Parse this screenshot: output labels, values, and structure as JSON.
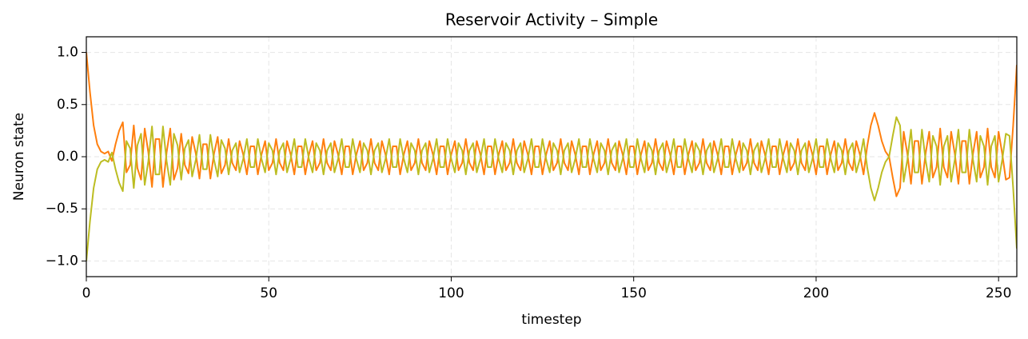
{
  "chart_data": {
    "type": "line",
    "title": "Reservoir Activity – Simple",
    "xlabel": "timestep",
    "ylabel": "Neuron state",
    "xlim": [
      0,
      255
    ],
    "ylim": [
      -1.15,
      1.15
    ],
    "xticks": [
      0,
      50,
      100,
      150,
      200,
      250
    ],
    "yticks": [
      {
        "value": -1.0,
        "label": "−1.0"
      },
      {
        "value": -0.5,
        "label": "−0.5"
      },
      {
        "value": 0.0,
        "label": "0.0"
      },
      {
        "value": 0.5,
        "label": "0.5"
      },
      {
        "value": 1.0,
        "label": "1.0"
      }
    ],
    "grid": true,
    "x": [
      0,
      1,
      2,
      3,
      4,
      5,
      6,
      7,
      8,
      9,
      10,
      11,
      12,
      13,
      14,
      15,
      16,
      17,
      18,
      19,
      20,
      21,
      22,
      23,
      24,
      25,
      26,
      27,
      28,
      29,
      30,
      31,
      32,
      33,
      34,
      35,
      36,
      37,
      38,
      39,
      40,
      41,
      42,
      43,
      44,
      45,
      46,
      47,
      48,
      49,
      50,
      51,
      52,
      53,
      54,
      55,
      56,
      57,
      58,
      59,
      60,
      61,
      62,
      63,
      64,
      65,
      66,
      67,
      68,
      69,
      70,
      71,
      72,
      73,
      74,
      75,
      76,
      77,
      78,
      79,
      80,
      81,
      82,
      83,
      84,
      85,
      86,
      87,
      88,
      89,
      90,
      91,
      92,
      93,
      94,
      95,
      96,
      97,
      98,
      99,
      100,
      101,
      102,
      103,
      104,
      105,
      106,
      107,
      108,
      109,
      110,
      111,
      112,
      113,
      114,
      115,
      116,
      117,
      118,
      119,
      120,
      121,
      122,
      123,
      124,
      125,
      126,
      127,
      128,
      129,
      130,
      131,
      132,
      133,
      134,
      135,
      136,
      137,
      138,
      139,
      140,
      141,
      142,
      143,
      144,
      145,
      146,
      147,
      148,
      149,
      150,
      151,
      152,
      153,
      154,
      155,
      156,
      157,
      158,
      159,
      160,
      161,
      162,
      163,
      164,
      165,
      166,
      167,
      168,
      169,
      170,
      171,
      172,
      173,
      174,
      175,
      176,
      177,
      178,
      179,
      180,
      181,
      182,
      183,
      184,
      185,
      186,
      187,
      188,
      189,
      190,
      191,
      192,
      193,
      194,
      195,
      196,
      197,
      198,
      199,
      200,
      201,
      202,
      203,
      204,
      205,
      206,
      207,
      208,
      209,
      210,
      211,
      212,
      213,
      214,
      215,
      216,
      217,
      218,
      219,
      220,
      221,
      222,
      223,
      224,
      225,
      226,
      227,
      228,
      229,
      230,
      231,
      232,
      233,
      234,
      235,
      236,
      237,
      238,
      239,
      240,
      241,
      242,
      243,
      244,
      245,
      246,
      247,
      248,
      249,
      250,
      251,
      252,
      253,
      254,
      255
    ],
    "series": [
      {
        "color": "#ff7f0e",
        "values": [
          1.0,
          0.62,
          0.3,
          0.12,
          0.05,
          0.03,
          0.05,
          -0.04,
          0.12,
          0.25,
          0.33,
          -0.15,
          -0.08,
          0.3,
          -0.11,
          -0.22,
          0.27,
          0.04,
          -0.29,
          0.17,
          0.17,
          -0.29,
          0.04,
          0.27,
          -0.22,
          -0.11,
          0.22,
          -0.08,
          -0.16,
          0.19,
          0.03,
          -0.21,
          0.12,
          0.12,
          -0.21,
          0.03,
          0.19,
          -0.16,
          -0.08,
          0.17,
          -0.06,
          -0.13,
          0.15,
          0.02,
          -0.17,
          0.1,
          0.1,
          -0.17,
          0.02,
          0.15,
          -0.13,
          -0.06,
          0.17,
          -0.06,
          -0.13,
          0.15,
          0.02,
          -0.17,
          0.1,
          0.1,
          -0.17,
          0.02,
          0.15,
          -0.13,
          -0.06,
          0.17,
          -0.06,
          -0.13,
          0.15,
          0.02,
          -0.17,
          0.1,
          0.1,
          -0.17,
          0.02,
          0.15,
          -0.13,
          -0.06,
          0.17,
          -0.06,
          -0.13,
          0.15,
          0.02,
          -0.17,
          0.1,
          0.1,
          -0.17,
          0.02,
          0.15,
          -0.13,
          -0.06,
          0.17,
          -0.06,
          -0.13,
          0.15,
          0.02,
          -0.17,
          0.1,
          0.1,
          -0.17,
          0.02,
          0.15,
          -0.13,
          -0.06,
          0.17,
          -0.06,
          -0.13,
          0.15,
          0.02,
          -0.17,
          0.1,
          0.1,
          -0.17,
          0.02,
          0.15,
          -0.13,
          -0.06,
          0.17,
          -0.06,
          -0.13,
          0.15,
          0.02,
          -0.17,
          0.1,
          0.1,
          -0.17,
          0.02,
          0.15,
          -0.13,
          -0.06,
          0.17,
          -0.06,
          -0.13,
          0.15,
          0.02,
          -0.17,
          0.1,
          0.1,
          -0.17,
          0.02,
          0.15,
          -0.13,
          -0.06,
          0.17,
          -0.06,
          -0.13,
          0.15,
          0.02,
          -0.17,
          0.1,
          0.1,
          -0.17,
          0.02,
          0.15,
          -0.13,
          -0.06,
          0.17,
          -0.06,
          -0.13,
          0.15,
          0.02,
          -0.17,
          0.1,
          0.1,
          -0.17,
          0.02,
          0.15,
          -0.13,
          -0.06,
          0.17,
          -0.06,
          -0.13,
          0.15,
          0.02,
          -0.17,
          0.1,
          0.1,
          -0.17,
          0.02,
          0.15,
          -0.13,
          -0.06,
          0.17,
          -0.06,
          -0.13,
          0.15,
          0.02,
          -0.17,
          0.1,
          0.1,
          -0.17,
          0.02,
          0.15,
          -0.13,
          -0.06,
          0.17,
          -0.06,
          -0.13,
          0.15,
          0.02,
          -0.17,
          0.1,
          0.1,
          -0.17,
          0.02,
          0.15,
          -0.13,
          -0.06,
          0.17,
          -0.06,
          -0.13,
          0.15,
          0.02,
          -0.17,
          0.1,
          0.3,
          0.42,
          0.3,
          0.15,
          0.05,
          0.0,
          -0.2,
          -0.38,
          -0.3,
          0.24,
          0.03,
          -0.26,
          0.15,
          0.15,
          -0.26,
          0.03,
          0.24,
          -0.2,
          -0.1,
          0.27,
          -0.1,
          -0.2,
          0.24,
          0.03,
          -0.26,
          0.15,
          0.15,
          -0.26,
          0.03,
          0.24,
          -0.2,
          -0.1,
          0.27,
          -0.1,
          -0.2,
          0.24,
          0.03,
          -0.22,
          -0.2,
          0.3,
          0.88
        ]
      },
      {
        "color": "#bcbd22",
        "values": [
          -1.0,
          -0.62,
          -0.3,
          -0.12,
          -0.05,
          -0.03,
          -0.05,
          0.04,
          -0.12,
          -0.25,
          -0.33,
          0.15,
          0.08,
          -0.3,
          0.11,
          0.22,
          -0.27,
          -0.04,
          0.29,
          -0.17,
          -0.17,
          0.29,
          -0.04,
          -0.27,
          0.22,
          0.11,
          -0.22,
          0.08,
          0.16,
          -0.19,
          -0.03,
          0.21,
          -0.12,
          -0.12,
          0.21,
          -0.03,
          -0.19,
          0.16,
          0.08,
          -0.17,
          0.06,
          0.13,
          -0.15,
          -0.02,
          0.17,
          -0.1,
          -0.1,
          0.17,
          -0.02,
          -0.15,
          0.13,
          0.06,
          -0.17,
          0.06,
          0.13,
          -0.15,
          -0.02,
          0.17,
          -0.1,
          -0.1,
          0.17,
          -0.02,
          -0.15,
          0.13,
          0.06,
          -0.17,
          0.06,
          0.13,
          -0.15,
          -0.02,
          0.17,
          -0.1,
          -0.1,
          0.17,
          -0.02,
          -0.15,
          0.13,
          0.06,
          -0.17,
          0.06,
          0.13,
          -0.15,
          -0.02,
          0.17,
          -0.1,
          -0.1,
          0.17,
          -0.02,
          -0.15,
          0.13,
          0.06,
          -0.17,
          0.06,
          0.13,
          -0.15,
          -0.02,
          0.17,
          -0.1,
          -0.1,
          0.17,
          -0.02,
          -0.15,
          0.13,
          0.06,
          -0.17,
          0.06,
          0.13,
          -0.15,
          -0.02,
          0.17,
          -0.1,
          -0.1,
          0.17,
          -0.02,
          -0.15,
          0.13,
          0.06,
          -0.17,
          0.06,
          0.13,
          -0.15,
          -0.02,
          0.17,
          -0.1,
          -0.1,
          0.17,
          -0.02,
          -0.15,
          0.13,
          0.06,
          -0.17,
          0.06,
          0.13,
          -0.15,
          -0.02,
          0.17,
          -0.1,
          -0.1,
          0.17,
          -0.02,
          -0.15,
          0.13,
          0.06,
          -0.17,
          0.06,
          0.13,
          -0.15,
          -0.02,
          0.17,
          -0.1,
          -0.1,
          0.17,
          -0.02,
          -0.15,
          0.13,
          0.06,
          -0.17,
          0.06,
          0.13,
          -0.15,
          -0.02,
          0.17,
          -0.1,
          -0.1,
          0.17,
          -0.02,
          -0.15,
          0.13,
          0.06,
          -0.17,
          0.06,
          0.13,
          -0.15,
          -0.02,
          0.17,
          -0.1,
          -0.1,
          0.17,
          -0.02,
          -0.15,
          0.13,
          0.06,
          -0.17,
          0.06,
          0.13,
          -0.15,
          -0.02,
          0.17,
          -0.1,
          -0.1,
          0.17,
          -0.02,
          -0.15,
          0.13,
          0.06,
          -0.17,
          0.06,
          0.13,
          -0.15,
          -0.02,
          0.17,
          -0.1,
          -0.1,
          0.17,
          -0.02,
          -0.15,
          0.13,
          0.06,
          -0.17,
          0.06,
          0.13,
          -0.15,
          -0.02,
          0.17,
          -0.1,
          -0.3,
          -0.42,
          -0.3,
          -0.15,
          -0.05,
          0.0,
          0.2,
          0.38,
          0.3,
          -0.24,
          -0.03,
          0.26,
          -0.15,
          -0.15,
          0.26,
          -0.03,
          -0.24,
          0.2,
          0.1,
          -0.27,
          0.1,
          0.2,
          -0.24,
          -0.03,
          0.26,
          -0.15,
          -0.15,
          0.26,
          -0.03,
          -0.24,
          0.2,
          0.1,
          -0.27,
          0.1,
          0.2,
          -0.24,
          -0.03,
          0.22,
          0.2,
          -0.3,
          -0.88
        ]
      }
    ]
  }
}
